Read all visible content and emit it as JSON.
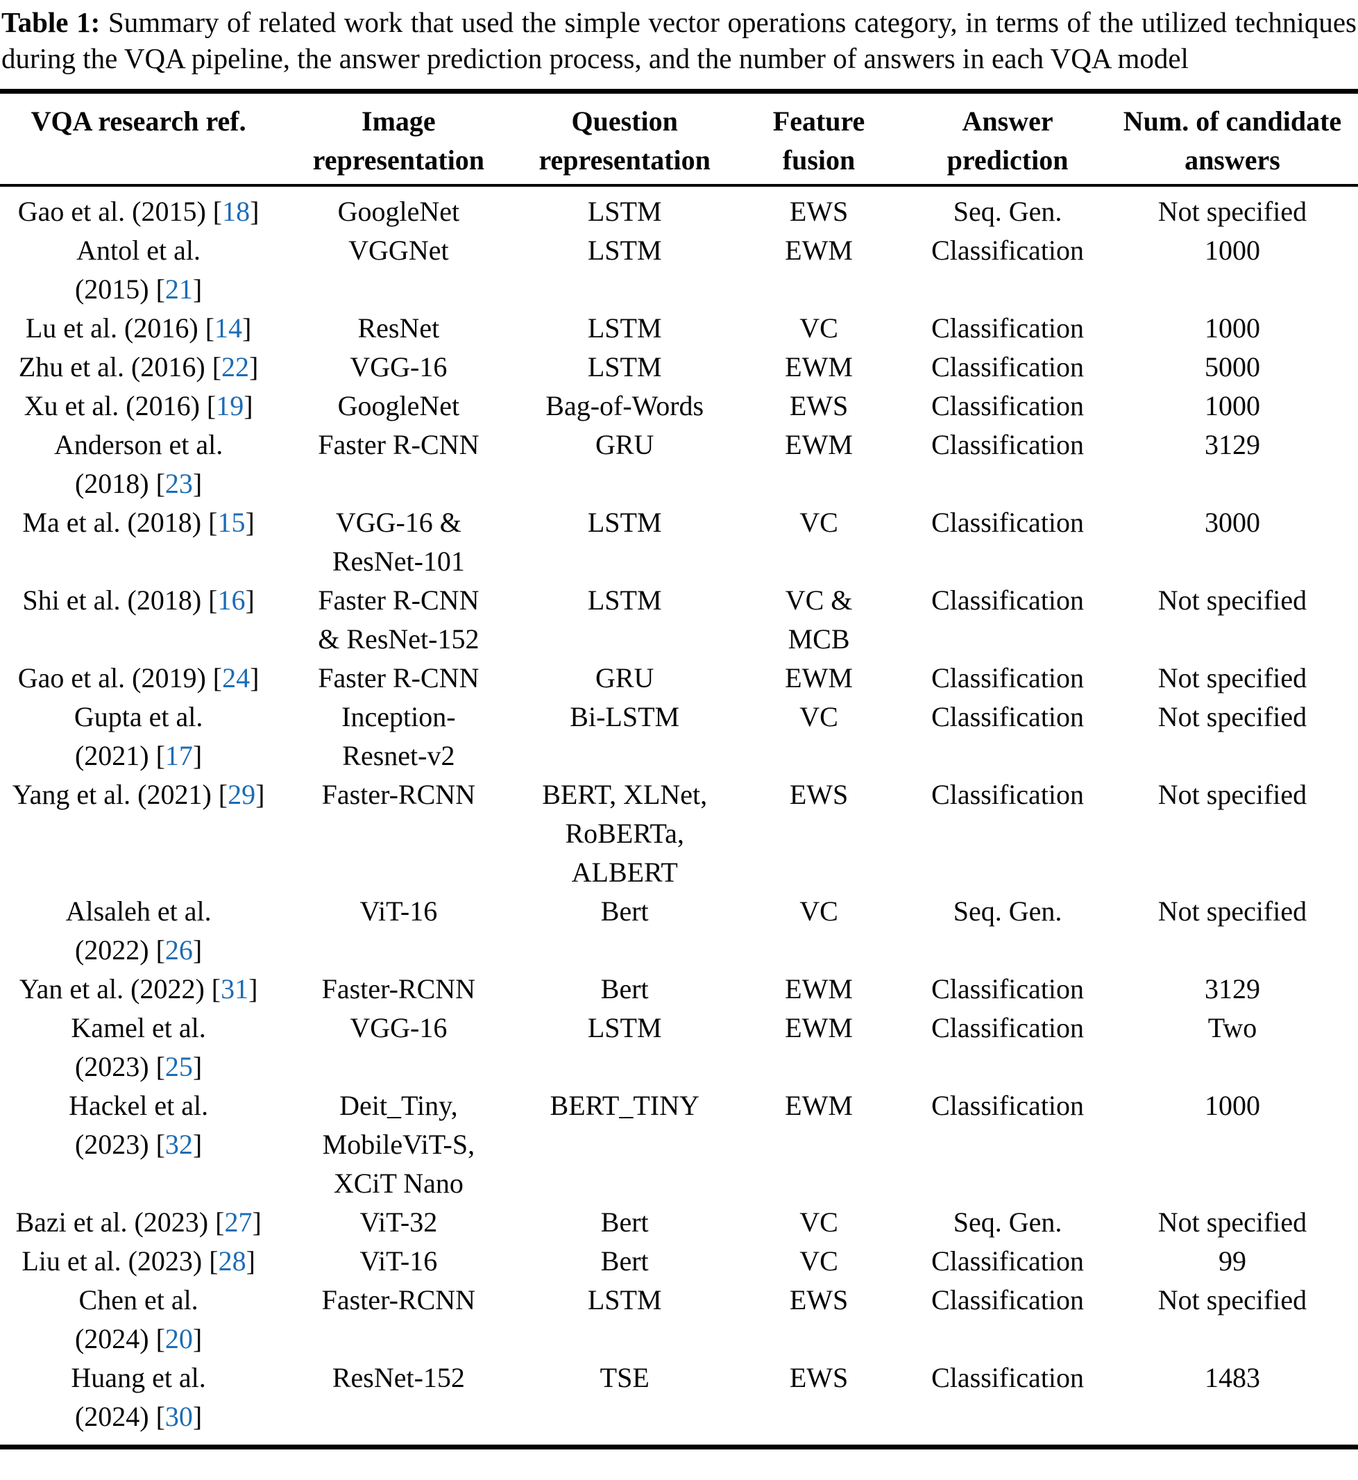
{
  "colors": {
    "link": "#1c6cb4",
    "text": "#060606",
    "rule": "#000000"
  },
  "caption": {
    "label": "Table 1:",
    "line1": "Summary of related work that used the simple vector operations category, in terms of the utilized techniques",
    "line2": "during the VQA pipeline, the answer prediction process, and the number of answers in each VQA model"
  },
  "table": {
    "columns": [
      {
        "lines": [
          "VQA research ref."
        ]
      },
      {
        "lines": [
          "Image",
          "representation"
        ]
      },
      {
        "lines": [
          "Question",
          "representation"
        ]
      },
      {
        "lines": [
          "Feature",
          "fusion"
        ]
      },
      {
        "lines": [
          "Answer",
          "prediction"
        ]
      },
      {
        "lines": [
          "Num. of candidate",
          "answers"
        ]
      }
    ],
    "rows": [
      {
        "ref": [
          {
            "t": "Gao et al. (2015) ",
            "c": "18"
          }
        ],
        "image": [
          "GoogleNet"
        ],
        "question": [
          "LSTM"
        ],
        "fusion": [
          "EWS"
        ],
        "prediction": [
          "Seq. Gen."
        ],
        "answers": [
          "Not specified"
        ]
      },
      {
        "ref": [
          {
            "t": "Antol et al."
          },
          {
            "t": "(2015) ",
            "c": "21"
          }
        ],
        "image": [
          "VGGNet"
        ],
        "question": [
          "LSTM"
        ],
        "fusion": [
          "EWM"
        ],
        "prediction": [
          "Classification"
        ],
        "answers": [
          "1000"
        ]
      },
      {
        "ref": [
          {
            "t": "Lu et al. (2016) ",
            "c": "14"
          }
        ],
        "image": [
          "ResNet"
        ],
        "question": [
          "LSTM"
        ],
        "fusion": [
          "VC"
        ],
        "prediction": [
          "Classification"
        ],
        "answers": [
          "1000"
        ]
      },
      {
        "ref": [
          {
            "t": "Zhu et al. (2016) ",
            "c": "22"
          }
        ],
        "image": [
          "VGG-16"
        ],
        "question": [
          "LSTM"
        ],
        "fusion": [
          "EWM"
        ],
        "prediction": [
          "Classification"
        ],
        "answers": [
          "5000"
        ]
      },
      {
        "ref": [
          {
            "t": "Xu et al. (2016) ",
            "c": "19"
          }
        ],
        "image": [
          "GoogleNet"
        ],
        "question": [
          "Bag-of-Words"
        ],
        "fusion": [
          "EWS"
        ],
        "prediction": [
          "Classification"
        ],
        "answers": [
          "1000"
        ]
      },
      {
        "ref": [
          {
            "t": "Anderson et al."
          },
          {
            "t": "(2018) ",
            "c": "23"
          }
        ],
        "image": [
          "Faster R-CNN"
        ],
        "question": [
          "GRU"
        ],
        "fusion": [
          "EWM"
        ],
        "prediction": [
          "Classification"
        ],
        "answers": [
          "3129"
        ]
      },
      {
        "ref": [
          {
            "t": "Ma et al. (2018) ",
            "c": "15"
          }
        ],
        "image": [
          "VGG-16 &",
          "ResNet-101"
        ],
        "question": [
          "LSTM"
        ],
        "fusion": [
          "VC"
        ],
        "prediction": [
          "Classification"
        ],
        "answers": [
          "3000"
        ]
      },
      {
        "ref": [
          {
            "t": "Shi et al. (2018) ",
            "c": "16"
          }
        ],
        "image": [
          "Faster R-CNN",
          "& ResNet-152"
        ],
        "question": [
          "LSTM"
        ],
        "fusion": [
          "VC &",
          "MCB"
        ],
        "prediction": [
          "Classification"
        ],
        "answers": [
          "Not specified"
        ]
      },
      {
        "ref": [
          {
            "t": "Gao et al. (2019) ",
            "c": "24"
          }
        ],
        "image": [
          "Faster R-CNN"
        ],
        "question": [
          "GRU"
        ],
        "fusion": [
          "EWM"
        ],
        "prediction": [
          "Classification"
        ],
        "answers": [
          "Not specified"
        ]
      },
      {
        "ref": [
          {
            "t": "Gupta et al."
          },
          {
            "t": "(2021) ",
            "c": "17"
          }
        ],
        "image": [
          "Inception-",
          "Resnet-v2"
        ],
        "question": [
          "Bi-LSTM"
        ],
        "fusion": [
          "VC"
        ],
        "prediction": [
          "Classification"
        ],
        "answers": [
          "Not specified"
        ]
      },
      {
        "ref": [
          {
            "t": "Yang et al. (2021) ",
            "c": "29"
          }
        ],
        "image": [
          "Faster-RCNN"
        ],
        "question": [
          "BERT, XLNet,",
          "RoBERTa,",
          "ALBERT"
        ],
        "fusion": [
          "EWS"
        ],
        "prediction": [
          "Classification"
        ],
        "answers": [
          "Not specified"
        ]
      },
      {
        "ref": [
          {
            "t": "Alsaleh et al."
          },
          {
            "t": "(2022) ",
            "c": "26"
          }
        ],
        "image": [
          "ViT-16"
        ],
        "question": [
          "Bert"
        ],
        "fusion": [
          "VC"
        ],
        "prediction": [
          "Seq. Gen."
        ],
        "answers": [
          "Not specified"
        ]
      },
      {
        "ref": [
          {
            "t": "Yan et al. (2022) ",
            "c": "31"
          }
        ],
        "image": [
          "Faster-RCNN"
        ],
        "question": [
          "Bert"
        ],
        "fusion": [
          "EWM"
        ],
        "prediction": [
          "Classification"
        ],
        "answers": [
          "3129"
        ]
      },
      {
        "ref": [
          {
            "t": "Kamel et al."
          },
          {
            "t": "(2023) ",
            "c": "25"
          }
        ],
        "image": [
          "VGG-16"
        ],
        "question": [
          "LSTM"
        ],
        "fusion": [
          "EWM"
        ],
        "prediction": [
          "Classification"
        ],
        "answers": [
          "Two"
        ]
      },
      {
        "ref": [
          {
            "t": "Hackel et al."
          },
          {
            "t": "(2023) ",
            "c": "32"
          }
        ],
        "image": [
          "Deit_Tiny,",
          "MobileViT-S,",
          "XCiT Nano"
        ],
        "question": [
          "BERT_TINY"
        ],
        "fusion": [
          "EWM"
        ],
        "prediction": [
          "Classification"
        ],
        "answers": [
          "1000"
        ]
      },
      {
        "ref": [
          {
            "t": "Bazi et al. (2023) ",
            "c": "27"
          }
        ],
        "image": [
          "ViT-32"
        ],
        "question": [
          "Bert"
        ],
        "fusion": [
          "VC"
        ],
        "prediction": [
          "Seq. Gen."
        ],
        "answers": [
          "Not specified"
        ]
      },
      {
        "ref": [
          {
            "t": "Liu et al. (2023) ",
            "c": "28"
          }
        ],
        "image": [
          "ViT-16"
        ],
        "question": [
          "Bert"
        ],
        "fusion": [
          "VC"
        ],
        "prediction": [
          "Classification"
        ],
        "answers": [
          "99"
        ]
      },
      {
        "ref": [
          {
            "t": "Chen et al."
          },
          {
            "t": "(2024) ",
            "c": "20"
          }
        ],
        "image": [
          "Faster-RCNN"
        ],
        "question": [
          "LSTM"
        ],
        "fusion": [
          "EWS"
        ],
        "prediction": [
          "Classification"
        ],
        "answers": [
          "Not specified"
        ]
      },
      {
        "ref": [
          {
            "t": "Huang et al."
          },
          {
            "t": "(2024) ",
            "c": "30"
          }
        ],
        "image": [
          "ResNet-152"
        ],
        "question": [
          "TSE"
        ],
        "fusion": [
          "EWS"
        ],
        "prediction": [
          "Classification"
        ],
        "answers": [
          "1483"
        ]
      }
    ]
  }
}
